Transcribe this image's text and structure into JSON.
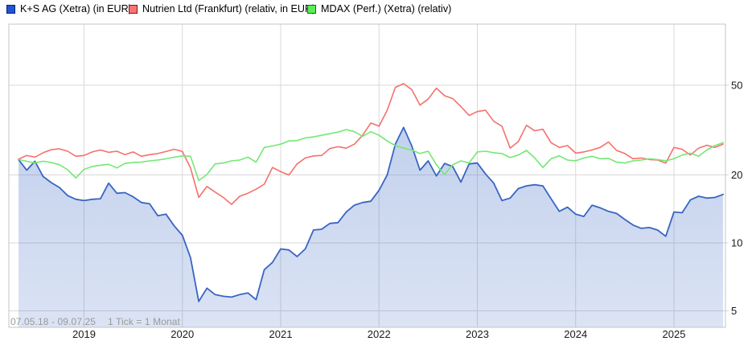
{
  "legend": {
    "items": [
      {
        "label": "K+S AG (Xetra) (in EUR)",
        "swatch_color": "#1e55d5",
        "swatch_border": "#0a2066"
      },
      {
        "label": "Nutrien Ltd (Frankfurt) (relativ, in EUR)",
        "swatch_color": "#f87373",
        "swatch_border": "#7c1515"
      },
      {
        "label": "MDAX (Perf.) (Xetra) (relativ)",
        "swatch_color": "#58ee58",
        "swatch_border": "#0f6e0f"
      }
    ]
  },
  "footnote": {
    "date_range": "07.05.18 - 09.07.25",
    "tick_info": "1 Tick = 1 Monat"
  },
  "chart_data": {
    "type": "line",
    "title": "",
    "x_start": "2018-05",
    "x_interval": "month",
    "x_range_label": "07.05.18 - 09.07.25",
    "y_scale": "log",
    "ylim": [
      4.2,
      93
    ],
    "y_ticks": [
      50,
      20,
      10,
      5
    ],
    "x_tick_labels": [
      "2019",
      "2020",
      "2021",
      "2022",
      "2023",
      "2024",
      "2025"
    ],
    "grid": true,
    "legend_position": "top",
    "axis_color": "#1a1a1a",
    "grid_color": "#d9d9d9",
    "border_color": "#c5c5c5",
    "series": [
      {
        "name": "K+S AG (Xetra) (in EUR)",
        "color": "#3866c3",
        "area_fill": true,
        "values": [
          23.4,
          21.0,
          23.0,
          19.7,
          18.5,
          17.6,
          16.2,
          15.6,
          15.4,
          15.6,
          15.7,
          18.4,
          16.6,
          16.7,
          16.0,
          15.1,
          14.9,
          13.2,
          13.4,
          11.9,
          10.8,
          8.6,
          5.5,
          6.3,
          5.9,
          5.8,
          5.75,
          5.9,
          6.0,
          5.6,
          7.6,
          8.2,
          9.4,
          9.3,
          8.7,
          9.4,
          11.4,
          11.5,
          12.2,
          12.3,
          13.7,
          14.7,
          15.1,
          15.3,
          17.1,
          20.0,
          27.4,
          32.5,
          26.9,
          21.0,
          23.1,
          19.8,
          22.5,
          21.8,
          18.6,
          22.4,
          22.6,
          20.2,
          18.4,
          15.4,
          15.8,
          17.4,
          17.9,
          18.1,
          17.9,
          15.7,
          13.8,
          14.4,
          13.4,
          13.1,
          14.7,
          14.3,
          13.8,
          13.5,
          12.7,
          12.0,
          11.6,
          11.7,
          11.4,
          10.7,
          13.7,
          13.6,
          15.5,
          16.1,
          15.8,
          15.9,
          16.4
        ]
      },
      {
        "name": "Nutrien Ltd (Frankfurt) (relativ, in EUR)",
        "color": "#f4716c",
        "area_fill": false,
        "values": [
          23.5,
          24.4,
          24.0,
          25.1,
          25.9,
          26.1,
          25.5,
          24.2,
          24.4,
          25.3,
          25.8,
          25.2,
          25.5,
          24.6,
          25.3,
          24.2,
          24.6,
          24.9,
          25.4,
          26.0,
          25.4,
          21.5,
          15.9,
          17.8,
          16.8,
          15.9,
          14.8,
          16.1,
          16.6,
          17.3,
          18.2,
          21.6,
          20.7,
          20.0,
          22.4,
          23.8,
          24.3,
          24.4,
          26.2,
          26.7,
          26.3,
          27.4,
          30.0,
          34.0,
          32.9,
          38.7,
          48.9,
          50.8,
          47.8,
          40.8,
          43.4,
          48.5,
          44.9,
          43.6,
          40.2,
          36.7,
          38.2,
          38.7,
          34.6,
          32.9,
          26.3,
          28.1,
          33.2,
          31.4,
          31.9,
          27.8,
          26.5,
          27.0,
          25.0,
          25.3,
          25.8,
          26.5,
          28.0,
          25.7,
          24.9,
          23.6,
          23.8,
          23.4,
          23.3,
          22.6,
          26.5,
          26.0,
          24.5,
          26.3,
          27.1,
          26.5,
          27.4
        ]
      },
      {
        "name": "MDAX (Perf.) (Xetra) (relativ)",
        "color": "#74e874",
        "area_fill": false,
        "values": [
          23.4,
          23.0,
          22.6,
          23.0,
          22.7,
          22.2,
          21.1,
          19.4,
          21.2,
          21.8,
          22.1,
          22.3,
          21.5,
          22.5,
          22.7,
          22.8,
          23.1,
          23.3,
          23.6,
          24.0,
          24.3,
          24.2,
          18.9,
          20.1,
          22.4,
          22.6,
          23.1,
          23.3,
          24.0,
          22.8,
          26.5,
          26.9,
          27.4,
          28.3,
          28.4,
          29.2,
          29.5,
          30.0,
          30.5,
          31.0,
          31.8,
          31.1,
          29.7,
          31.1,
          30.0,
          28.3,
          27.0,
          26.3,
          25.8,
          24.9,
          25.5,
          22.2,
          20.1,
          22.2,
          23.1,
          22.6,
          25.3,
          25.5,
          25.1,
          24.9,
          23.9,
          24.5,
          25.7,
          23.8,
          21.6,
          23.6,
          24.3,
          23.3,
          23.1,
          23.8,
          24.2,
          23.6,
          23.7,
          22.8,
          22.6,
          23.1,
          23.3,
          23.6,
          23.4,
          23.1,
          23.6,
          24.5,
          25.0,
          24.2,
          25.8,
          27.0,
          27.8
        ]
      }
    ]
  }
}
